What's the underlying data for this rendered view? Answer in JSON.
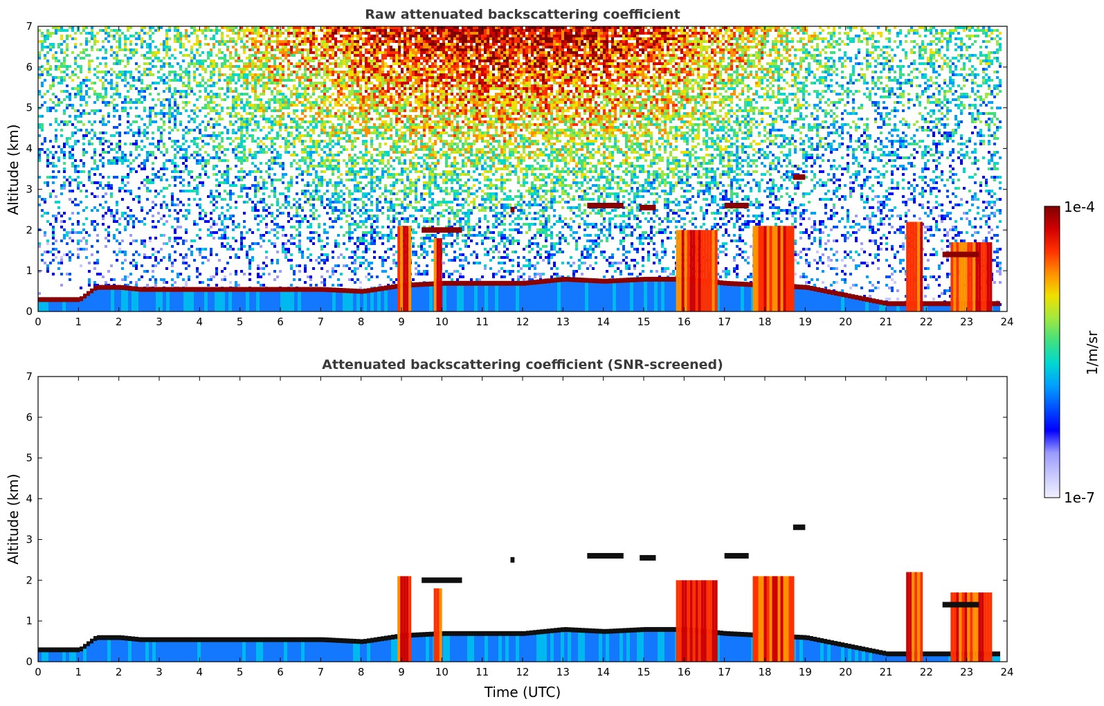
{
  "chart_data": [
    {
      "type": "heatmap",
      "title": "Raw attenuated backscattering coefficient",
      "xlabel": "",
      "ylabel": "Altitude (km)",
      "xlim": [
        0,
        24
      ],
      "ylim": [
        0,
        7
      ],
      "xticks": [
        "0",
        "1",
        "2",
        "3",
        "4",
        "5",
        "6",
        "7",
        "8",
        "9",
        "10",
        "11",
        "12",
        "13",
        "14",
        "15",
        "16",
        "17",
        "18",
        "19",
        "20",
        "21",
        "22",
        "23",
        "24"
      ],
      "yticks": [
        "0",
        "1",
        "2",
        "3",
        "4",
        "5",
        "6",
        "7"
      ],
      "screened": false,
      "boundary_layer_top_km": [
        [
          0.0,
          0.3
        ],
        [
          1.0,
          0.3
        ],
        [
          1.4,
          0.6
        ],
        [
          2.0,
          0.6
        ],
        [
          2.5,
          0.55
        ],
        [
          3.0,
          0.55
        ],
        [
          4.0,
          0.55
        ],
        [
          5.0,
          0.55
        ],
        [
          6.0,
          0.55
        ],
        [
          7.0,
          0.55
        ],
        [
          8.0,
          0.5
        ],
        [
          9.0,
          0.65
        ],
        [
          10.0,
          0.7
        ],
        [
          11.0,
          0.7
        ],
        [
          12.0,
          0.7
        ],
        [
          13.0,
          0.8
        ],
        [
          14.0,
          0.75
        ],
        [
          15.0,
          0.8
        ],
        [
          16.0,
          0.8
        ],
        [
          17.0,
          0.7
        ],
        [
          18.0,
          0.65
        ],
        [
          19.0,
          0.6
        ],
        [
          20.0,
          0.4
        ],
        [
          21.0,
          0.2
        ],
        [
          22.0,
          0.2
        ],
        [
          23.0,
          0.2
        ],
        [
          23.8,
          0.2
        ]
      ],
      "cloud_layers": [
        {
          "x0": 13.6,
          "x1": 14.5,
          "alt_km": 2.6
        },
        {
          "x0": 14.9,
          "x1": 15.3,
          "alt_km": 2.55
        },
        {
          "x0": 17.0,
          "x1": 17.6,
          "alt_km": 2.6
        },
        {
          "x0": 18.7,
          "x1": 19.0,
          "alt_km": 3.3
        },
        {
          "x0": 9.5,
          "x1": 10.5,
          "alt_km": 2.0
        },
        {
          "x0": 11.7,
          "x1": 11.8,
          "alt_km": 2.5
        },
        {
          "x0": 22.4,
          "x1": 23.3,
          "alt_km": 1.4
        }
      ],
      "columns": [
        {
          "x0": 8.9,
          "x1": 9.2,
          "top_km": 2.1
        },
        {
          "x0": 9.8,
          "x1": 10.0,
          "top_km": 1.8
        },
        {
          "x0": 15.8,
          "x1": 16.8,
          "top_km": 2.0
        },
        {
          "x0": 17.7,
          "x1": 18.7,
          "top_km": 2.1
        },
        {
          "x0": 21.5,
          "x1": 21.9,
          "top_km": 2.2
        },
        {
          "x0": 22.6,
          "x1": 23.6,
          "top_km": 1.7
        }
      ]
    },
    {
      "type": "heatmap",
      "title": "Attenuated backscattering coefficient (SNR-screened)",
      "xlabel": "Time (UTC)",
      "ylabel": "Altitude (km)",
      "xlim": [
        0,
        24
      ],
      "ylim": [
        0,
        7
      ],
      "xticks": [
        "0",
        "1",
        "2",
        "3",
        "4",
        "5",
        "6",
        "7",
        "8",
        "9",
        "10",
        "11",
        "12",
        "13",
        "14",
        "15",
        "16",
        "17",
        "18",
        "19",
        "20",
        "21",
        "22",
        "23",
        "24"
      ],
      "yticks": [
        "0",
        "1",
        "2",
        "3",
        "4",
        "5",
        "6",
        "7"
      ],
      "screened": true
    }
  ],
  "colorbar": {
    "label": "1/m/sr",
    "max_label": "1e-4",
    "min_label": "1e-7",
    "colors": [
      "#f0f0ff",
      "#c8c8ff",
      "#9a9aff",
      "#0000ff",
      "#0050ff",
      "#00a0ff",
      "#00d8d0",
      "#40e080",
      "#a0e840",
      "#f0e000",
      "#ff9000",
      "#ff3000",
      "#d00000",
      "#800000"
    ]
  }
}
